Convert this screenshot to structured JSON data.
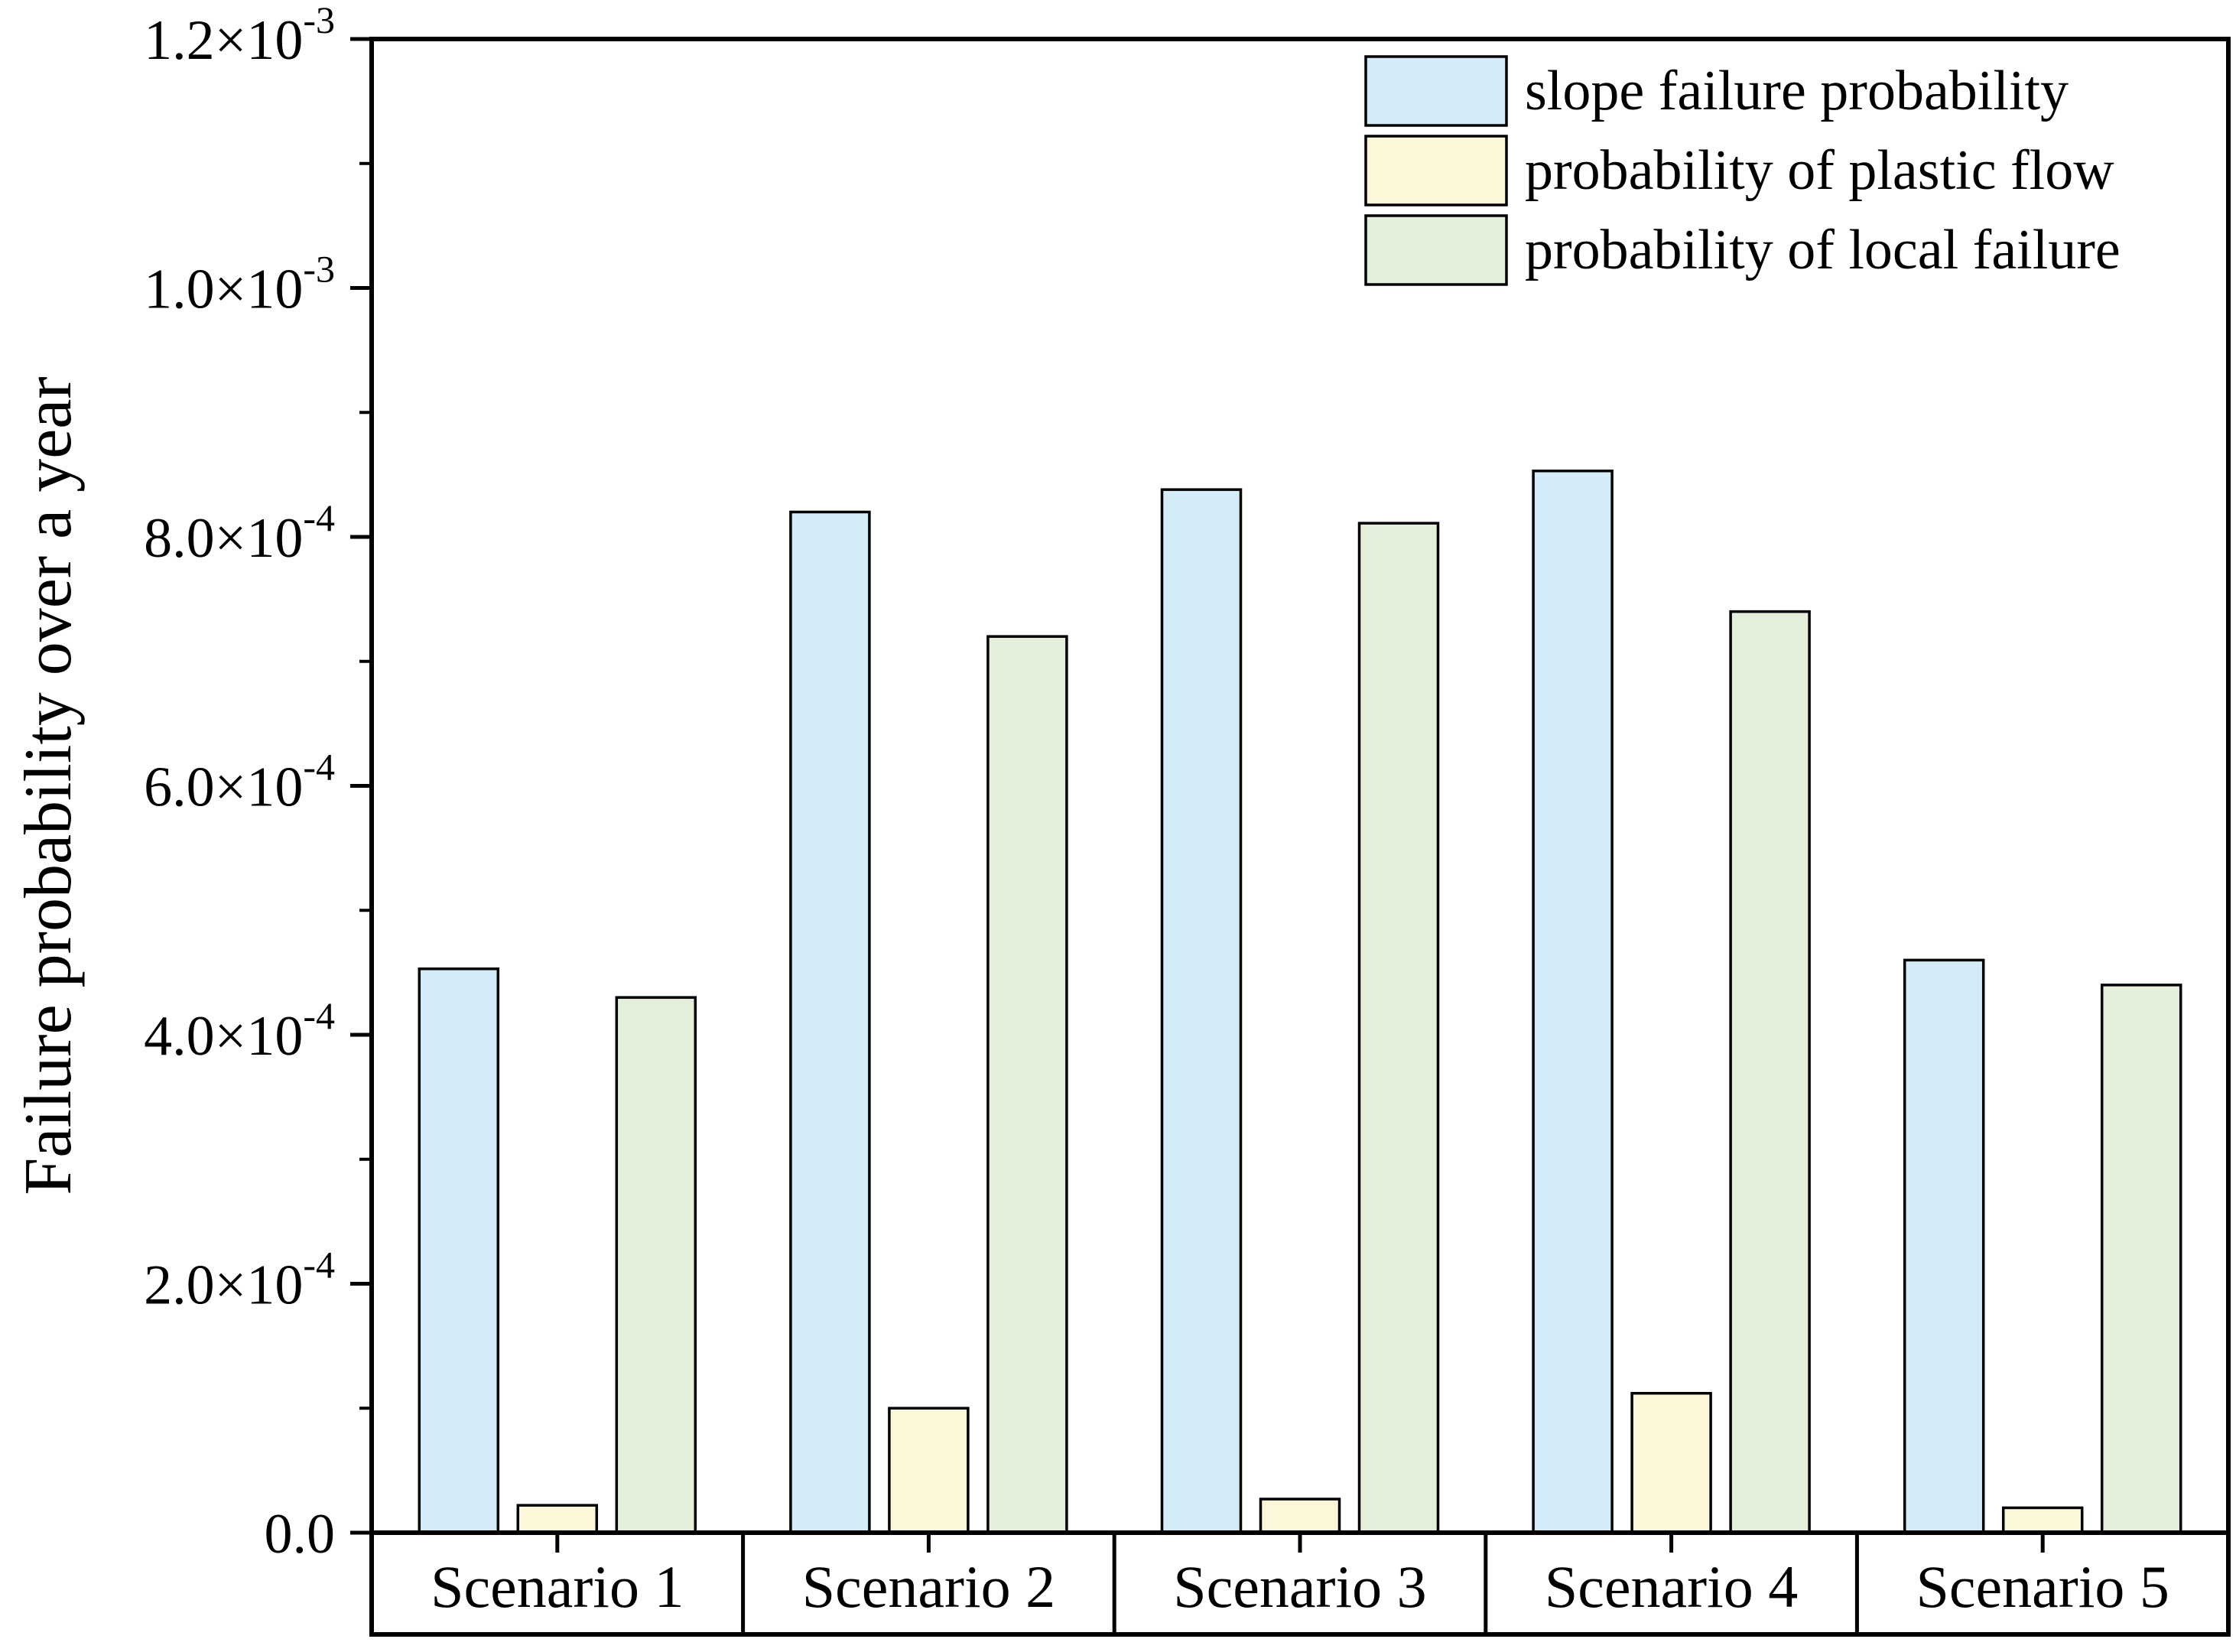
{
  "chart_data": {
    "type": "bar",
    "categories": [
      "Scenario 1",
      "Scenario 2",
      "Scenario 3",
      "Scenario 4",
      "Scenario 5"
    ],
    "series": [
      {
        "name": "slope failure probability",
        "color": "#d4ebf8",
        "values": [
          0.000453,
          0.00082,
          0.000838,
          0.000853,
          0.00046
        ]
      },
      {
        "name": "probability of plastic flow",
        "color": "#fdf7d9",
        "values": [
          2.2e-05,
          0.0001,
          2.7e-05,
          0.000112,
          2e-05
        ]
      },
      {
        "name": "probability of local failure",
        "color": "#e3eedb",
        "values": [
          0.00043,
          0.00072,
          0.000811,
          0.00074,
          0.00044
        ]
      }
    ],
    "ylabel": "Failure probability over a year",
    "ylim": [
      0,
      0.0012
    ],
    "yticks": [
      {
        "value": 0,
        "mantissa": "0.0",
        "exponent": ""
      },
      {
        "value": 0.0002,
        "mantissa": "2.0×10",
        "exponent": "-4"
      },
      {
        "value": 0.0004,
        "mantissa": "4.0×10",
        "exponent": "-4"
      },
      {
        "value": 0.0006,
        "mantissa": "6.0×10",
        "exponent": "-4"
      },
      {
        "value": 0.0008,
        "mantissa": "8.0×10",
        "exponent": "-4"
      },
      {
        "value": 0.001,
        "mantissa": "1.0×10",
        "exponent": "-3"
      },
      {
        "value": 0.0012,
        "mantissa": "1.2×10",
        "exponent": "-3"
      }
    ],
    "legend_position": "top-right",
    "grid": false
  }
}
